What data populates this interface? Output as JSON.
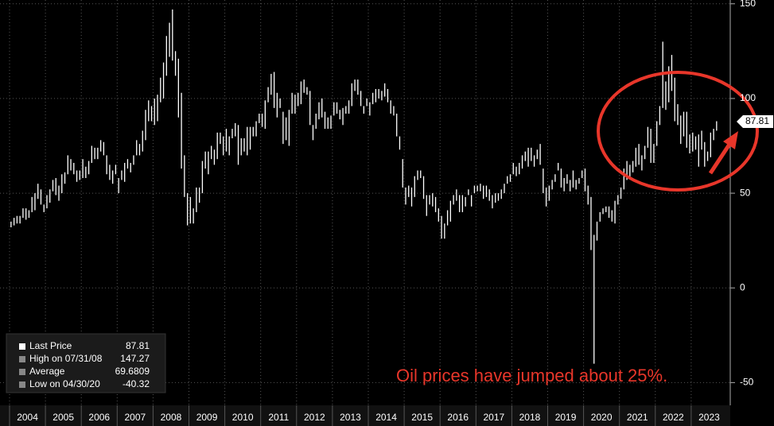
{
  "chart_data": {
    "type": "range",
    "categories": [
      "2004",
      "2005",
      "2006",
      "2007",
      "2008",
      "2009",
      "2010",
      "2011",
      "2012",
      "2013",
      "2014",
      "2015",
      "2016",
      "2017",
      "2018",
      "2019",
      "2020",
      "2021",
      "2022",
      "2023"
    ],
    "high": [
      35,
      37,
      38,
      38,
      42,
      42,
      41,
      48,
      50,
      55,
      52,
      44,
      49,
      52,
      57,
      58,
      54,
      60,
      61,
      70,
      68,
      66,
      62,
      62,
      68,
      64,
      67,
      75,
      74,
      74,
      78,
      77,
      70,
      65,
      62,
      65,
      58,
      62,
      66,
      68,
      66,
      70,
      78,
      76,
      83,
      94,
      99,
      96,
      100,
      102,
      111,
      119,
      133,
      140,
      147,
      125,
      121,
      103,
      70,
      50,
      48,
      42,
      53,
      53,
      67,
      72,
      72,
      75,
      73,
      82,
      82,
      80,
      84,
      80,
      84,
      87,
      86,
      79,
      79,
      85,
      85,
      85,
      88,
      92,
      92,
      99,
      106,
      113,
      114,
      103,
      100,
      93,
      90,
      94,
      103,
      102,
      103,
      109,
      110,
      106,
      104,
      86,
      92,
      98,
      100,
      93,
      90,
      91,
      98,
      98,
      94,
      95,
      96,
      99,
      108,
      110,
      110,
      104,
      96,
      100,
      98,
      103,
      105,
      105,
      104,
      108,
      105,
      99,
      96,
      92,
      80,
      68,
      53,
      54,
      53,
      59,
      62,
      62,
      59,
      49,
      49,
      50,
      48,
      42,
      38,
      34,
      41,
      46,
      49,
      52,
      49,
      49,
      48,
      52,
      49,
      54,
      54,
      55,
      54,
      54,
      52,
      49,
      50,
      50,
      52,
      55,
      59,
      60,
      66,
      64,
      66,
      70,
      72,
      74,
      74,
      70,
      73,
      76,
      63,
      53,
      54,
      57,
      60,
      66,
      63,
      58,
      60,
      57,
      62,
      57,
      58,
      62,
      63,
      54,
      48,
      28,
      35,
      40,
      42,
      43,
      43,
      41,
      46,
      49,
      53,
      63,
      67,
      65,
      67,
      74,
      76,
      70,
      75,
      85,
      84,
      76,
      88,
      96,
      130,
      109,
      117,
      123,
      111,
      97,
      91,
      93,
      93,
      81,
      82,
      80,
      81,
      83,
      77,
      72,
      82,
      84,
      88
    ],
    "low": [
      32,
      33,
      34,
      34,
      37,
      36,
      37,
      40,
      41,
      47,
      44,
      40,
      42,
      45,
      51,
      49,
      46,
      50,
      55,
      60,
      62,
      60,
      56,
      57,
      58,
      58,
      60,
      66,
      68,
      68,
      72,
      70,
      60,
      57,
      55,
      60,
      50,
      57,
      56,
      63,
      61,
      65,
      70,
      70,
      72,
      78,
      88,
      88,
      86,
      88,
      98,
      100,
      112,
      122,
      120,
      112,
      90,
      63,
      48,
      33,
      34,
      34,
      40,
      45,
      50,
      63,
      60,
      68,
      65,
      68,
      76,
      70,
      72,
      70,
      79,
      80,
      65,
      70,
      72,
      70,
      73,
      80,
      80,
      87,
      85,
      84,
      98,
      102,
      95,
      90,
      95,
      76,
      78,
      75,
      92,
      92,
      96,
      97,
      103,
      102,
      86,
      78,
      84,
      89,
      90,
      84,
      84,
      84,
      91,
      92,
      89,
      86,
      92,
      92,
      96,
      104,
      102,
      96,
      92,
      96,
      91,
      97,
      98,
      100,
      99,
      101,
      98,
      92,
      91,
      80,
      73,
      53,
      44,
      48,
      43,
      48,
      57,
      58,
      47,
      38,
      44,
      43,
      40,
      35,
      26,
      26,
      33,
      35,
      44,
      46,
      40,
      40,
      43,
      49,
      43,
      50,
      51,
      51,
      47,
      48,
      46,
      42,
      45,
      46,
      47,
      50,
      55,
      56,
      60,
      59,
      60,
      63,
      67,
      64,
      67,
      64,
      68,
      65,
      50,
      43,
      46,
      52,
      56,
      62,
      53,
      51,
      55,
      51,
      53,
      52,
      55,
      58,
      51,
      44,
      20,
      -40,
      25,
      35,
      39,
      40,
      37,
      35,
      34,
      44,
      47,
      52,
      57,
      58,
      61,
      64,
      65,
      62,
      68,
      74,
      66,
      66,
      75,
      86,
      95,
      94,
      98,
      104,
      88,
      86,
      76,
      80,
      74,
      71,
      72,
      73,
      64,
      73,
      64,
      67,
      69,
      78,
      83
    ],
    "color": "#ffffff",
    "ylim": [
      -62,
      152
    ],
    "yticks": [
      -50,
      0,
      50,
      100,
      150
    ],
    "grid": true,
    "legend": [
      {
        "label": "Last Price",
        "value": 87.81
      },
      {
        "label": "High on 07/31/08",
        "value": 147.27
      },
      {
        "label": "Average",
        "value": 69.6809
      },
      {
        "label": "Low on 04/30/20",
        "value": -40.32
      }
    ],
    "annotation": "Oil prices have jumped about 25%."
  }
}
